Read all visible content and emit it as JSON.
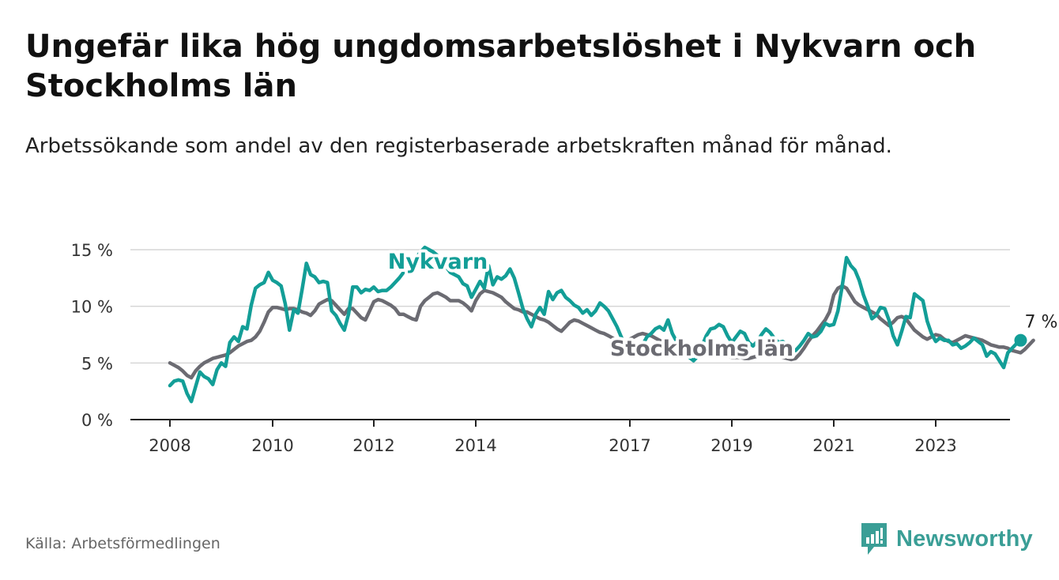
{
  "title": "Ungefär lika hög ungdomsarbetslöshet i Nykvarn och Stockholms län",
  "subtitle": "Arbetssökande som andel av den registerbaserade arbetskraften månad för månad.",
  "source": "Källa: Arbetsförmedlingen",
  "brand": {
    "name": "Newsworthy",
    "icon": "bar-chart-logo-icon",
    "color": "#3a9e96"
  },
  "chart_data": {
    "type": "line",
    "title": "",
    "xlabel": "",
    "ylabel": "",
    "xlim": [
      2007.8,
      2024.9
    ],
    "ylim": [
      0,
      15
    ],
    "y_ticks": [
      0,
      5,
      10,
      15
    ],
    "y_tick_labels": [
      "0 %",
      "5 %",
      "10 %",
      "15 %"
    ],
    "x_ticks": [
      2008,
      2010,
      2012,
      2014,
      2017,
      2019,
      2021,
      2023
    ],
    "x_tick_labels": [
      "2008",
      "2010",
      "2012",
      "2014",
      "2017",
      "2019",
      "2021",
      "2023"
    ],
    "grid": true,
    "end_label": "7 %",
    "series": [
      {
        "name": "Stockholms län",
        "label": "Stockholms län",
        "color": "#6b6b72",
        "x_start": 2008.0,
        "step": 0.08333,
        "values": [
          5.0,
          4.8,
          4.6,
          4.3,
          3.9,
          3.7,
          4.3,
          4.7,
          5.0,
          5.2,
          5.4,
          5.5,
          5.6,
          5.7,
          5.9,
          6.2,
          6.5,
          6.7,
          6.9,
          7.0,
          7.3,
          7.8,
          8.6,
          9.5,
          9.9,
          9.9,
          9.8,
          9.7,
          9.8,
          9.8,
          9.7,
          9.5,
          9.4,
          9.2,
          9.6,
          10.2,
          10.4,
          10.6,
          10.5,
          10.1,
          9.7,
          9.3,
          9.8,
          9.8,
          9.4,
          9.0,
          8.8,
          9.6,
          10.4,
          10.6,
          10.5,
          10.3,
          10.1,
          9.8,
          9.3,
          9.3,
          9.1,
          8.9,
          8.8,
          10.0,
          10.5,
          10.8,
          11.1,
          11.2,
          11.0,
          10.8,
          10.5,
          10.5,
          10.5,
          10.3,
          10.0,
          9.6,
          10.5,
          11.1,
          11.4,
          11.3,
          11.2,
          11.0,
          10.8,
          10.4,
          10.1,
          9.8,
          9.7,
          9.5,
          9.5,
          9.3,
          9.1,
          8.9,
          8.8,
          8.6,
          8.3,
          8.0,
          7.8,
          8.2,
          8.6,
          8.8,
          8.7,
          8.5,
          8.3,
          8.1,
          7.9,
          7.7,
          7.6,
          7.4,
          7.2,
          7.0,
          6.8,
          6.9,
          7.1,
          7.3,
          7.5,
          7.6,
          7.5,
          7.4,
          7.2,
          7.0,
          6.8,
          6.7,
          6.6,
          6.5,
          6.4,
          6.3,
          6.2,
          6.1,
          6.1,
          6.0,
          5.9,
          5.8,
          5.8,
          5.7,
          5.6,
          5.6,
          5.5,
          5.5,
          5.5,
          5.4,
          5.4,
          5.5,
          5.6,
          5.7,
          5.8,
          5.8,
          5.7,
          5.6,
          5.5,
          5.4,
          5.3,
          5.4,
          5.8,
          6.3,
          6.9,
          7.4,
          7.8,
          8.3,
          8.8,
          9.5,
          11.0,
          11.6,
          11.8,
          11.6,
          11.0,
          10.4,
          10.1,
          9.9,
          9.7,
          9.5,
          9.3,
          8.9,
          8.6,
          8.3,
          8.6,
          9.0,
          9.1,
          8.9,
          8.4,
          7.9,
          7.6,
          7.3,
          7.1,
          7.3,
          7.5,
          7.4,
          7.1,
          6.9,
          6.8,
          7.0,
          7.2,
          7.4,
          7.3,
          7.2,
          7.1,
          7.0,
          6.8,
          6.6,
          6.5,
          6.4,
          6.4,
          6.3,
          6.1,
          6.0,
          5.9,
          6.2,
          6.6,
          7.0
        ]
      },
      {
        "name": "Nykvarn",
        "label": "Nykvarn",
        "color": "#139e97",
        "x_start": 2008.0,
        "step": 0.08333,
        "values": [
          3.0,
          3.4,
          3.5,
          3.4,
          2.3,
          1.6,
          2.9,
          4.2,
          3.8,
          3.6,
          3.1,
          4.4,
          5.0,
          4.7,
          6.8,
          7.3,
          6.9,
          8.2,
          8.0,
          10.1,
          11.6,
          11.9,
          12.1,
          13.0,
          12.3,
          12.1,
          11.8,
          10.2,
          7.9,
          9.7,
          9.4,
          11.5,
          13.8,
          12.8,
          12.6,
          12.1,
          12.2,
          12.1,
          9.6,
          9.2,
          8.5,
          7.9,
          9.3,
          11.7,
          11.7,
          11.2,
          11.5,
          11.4,
          11.7,
          11.3,
          11.4,
          11.4,
          11.7,
          12.1,
          12.5,
          13.0,
          13.5,
          14.0,
          14.3,
          14.8,
          15.2,
          15.0,
          14.8,
          14.5,
          14.0,
          13.5,
          13.0,
          12.8,
          12.6,
          12.0,
          11.8,
          10.8,
          11.5,
          12.2,
          11.6,
          13.6,
          11.9,
          12.6,
          12.4,
          12.7,
          13.3,
          12.5,
          11.2,
          9.8,
          8.9,
          8.2,
          9.3,
          9.9,
          9.3,
          11.3,
          10.6,
          11.2,
          11.4,
          10.8,
          10.5,
          10.1,
          9.9,
          9.4,
          9.7,
          9.2,
          9.6,
          10.3,
          10.0,
          9.6,
          8.9,
          8.2,
          7.3,
          6.6,
          6.4,
          6.6,
          6.3,
          6.6,
          7.3,
          7.6,
          8.0,
          8.2,
          7.9,
          8.8,
          7.6,
          6.9,
          6.3,
          5.8,
          5.5,
          5.2,
          5.6,
          6.5,
          7.4,
          8.0,
          8.1,
          8.4,
          8.2,
          7.4,
          6.8,
          7.3,
          7.8,
          7.6,
          6.8,
          6.5,
          6.9,
          7.5,
          8.0,
          7.7,
          7.2,
          6.8,
          6.9,
          6.6,
          6.2,
          6.1,
          6.5,
          7.0,
          7.6,
          7.3,
          7.4,
          7.8,
          8.5,
          8.3,
          8.4,
          9.6,
          11.8,
          14.3,
          13.6,
          13.2,
          12.3,
          11.0,
          10.0,
          8.9,
          9.2,
          9.9,
          9.8,
          8.8,
          7.4,
          6.6,
          7.8,
          9.1,
          9.0,
          11.1,
          10.8,
          10.5,
          8.7,
          7.6,
          6.9,
          7.2,
          7.0,
          7.0,
          6.6,
          6.7,
          6.3,
          6.5,
          6.8,
          7.2,
          6.9,
          6.6,
          5.6,
          6.0,
          5.8,
          5.2,
          4.6,
          5.9,
          6.3,
          6.7,
          7.0
        ]
      }
    ]
  }
}
